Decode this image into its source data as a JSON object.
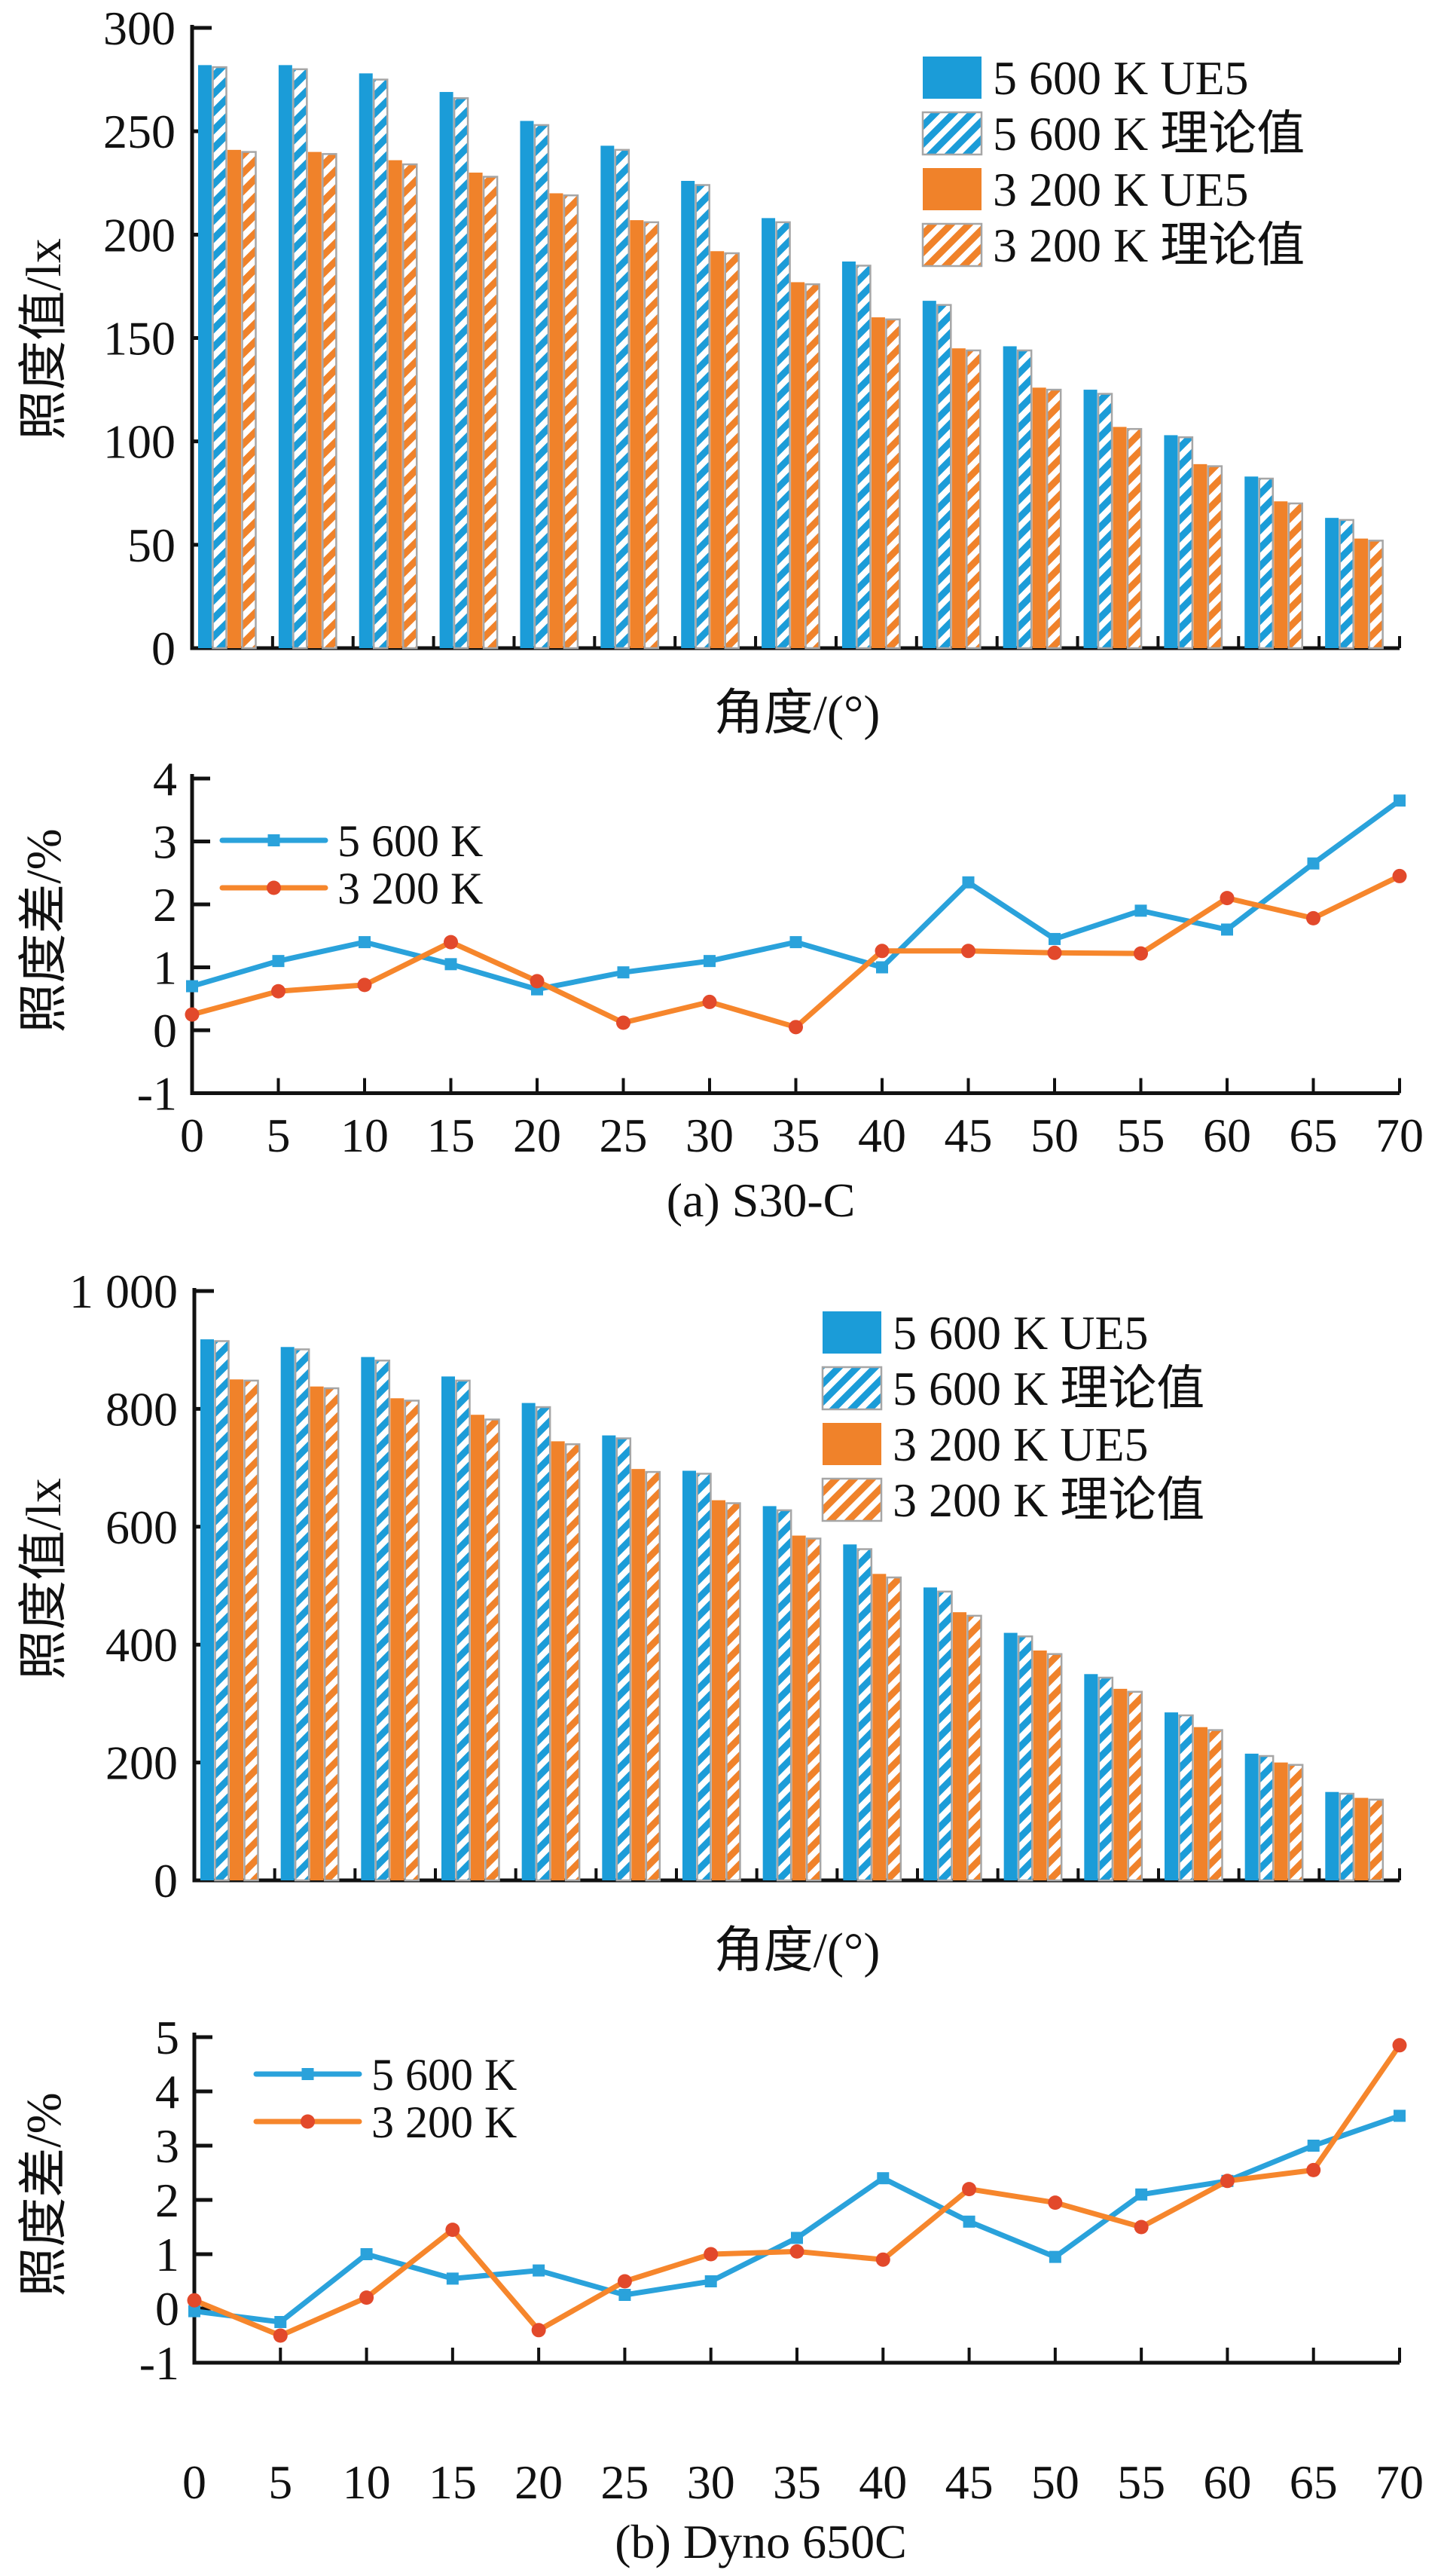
{
  "figure": {
    "description": "Illuminance comparison figure with two bar charts (UE5 vs theoretical illuminance) and two percent-difference line charts",
    "colors": {
      "blue": "#1b9cd8",
      "orange": "#f0822a",
      "line_blue": "#2aa2db",
      "line_orange": "#f6862c",
      "marker_orange": "#e2492b",
      "hatch_border": "#a6a6a6",
      "axis": "#111111"
    }
  },
  "chart_data": [
    {
      "id": "bars-s30c",
      "type": "bar",
      "title": "",
      "xlabel": "角度/(°)",
      "ylabel": "照度值/lx",
      "ylim": [
        0,
        300
      ],
      "ytick_labels": [
        "0",
        "50",
        "100",
        "150",
        "200",
        "250",
        "300"
      ],
      "ytick_values": [
        0,
        50,
        100,
        150,
        200,
        250,
        300
      ],
      "categories": [
        "0",
        "5",
        "10",
        "15",
        "20",
        "25",
        "30",
        "35",
        "40",
        "45",
        "50",
        "55",
        "60",
        "65",
        "70"
      ],
      "grid": false,
      "legend_position": "top-right",
      "series": [
        {
          "name": "5 600 K UE5",
          "color": "#1b9cd8",
          "pattern": "solid",
          "values": [
            282,
            282,
            278,
            269,
            255,
            243,
            226,
            208,
            187,
            168,
            146,
            125,
            103,
            83,
            63
          ]
        },
        {
          "name": "5 600 K 理论值",
          "color": "#1b9cd8",
          "pattern": "hatch",
          "values": [
            281,
            280,
            275,
            266,
            253,
            241,
            224,
            206,
            185,
            166,
            144,
            123,
            102,
            82,
            62
          ]
        },
        {
          "name": "3 200 K UE5",
          "color": "#f0822a",
          "pattern": "solid",
          "values": [
            241,
            240,
            236,
            230,
            220,
            207,
            192,
            177,
            160,
            145,
            126,
            107,
            89,
            71,
            53
          ]
        },
        {
          "name": "3 200 K 理论值",
          "color": "#f0822a",
          "pattern": "hatch",
          "values": [
            240,
            239,
            234,
            228,
            219,
            206,
            191,
            176,
            159,
            144,
            125,
            106,
            88,
            70,
            52
          ]
        }
      ]
    },
    {
      "id": "line-s30c",
      "type": "line",
      "caption": "(a) S30-C",
      "xlabel": "",
      "ylabel": "照度差/%",
      "ylim": [
        -1,
        4
      ],
      "ytick_labels": [
        "-1",
        "0",
        "1",
        "2",
        "3",
        "4"
      ],
      "ytick_values": [
        -1,
        0,
        1,
        2,
        3,
        4
      ],
      "categories": [
        "0",
        "5",
        "10",
        "15",
        "20",
        "25",
        "30",
        "35",
        "40",
        "45",
        "50",
        "55",
        "60",
        "65",
        "70"
      ],
      "grid": false,
      "legend_position": "top-left",
      "series": [
        {
          "name": "5 600 K",
          "color": "#2aa2db",
          "marker": "square",
          "marker_color": "#2aa2db",
          "values": [
            0.7,
            1.1,
            1.4,
            1.05,
            0.65,
            0.92,
            1.1,
            1.4,
            1.0,
            2.35,
            1.45,
            1.9,
            1.6,
            2.65,
            3.65
          ]
        },
        {
          "name": "3 200 K",
          "color": "#f6862c",
          "marker": "circle",
          "marker_color": "#e2492b",
          "values": [
            0.25,
            0.62,
            0.72,
            1.4,
            0.78,
            0.12,
            0.45,
            0.05,
            1.26,
            1.26,
            1.23,
            1.22,
            2.1,
            1.78,
            2.45
          ]
        }
      ]
    },
    {
      "id": "bars-dyno650c",
      "type": "bar",
      "title": "",
      "xlabel": "角度/(°)",
      "ylabel": "照度值/lx",
      "ylim": [
        0,
        1000
      ],
      "ytick_labels": [
        "0",
        "200",
        "400",
        "600",
        "800",
        "1 000"
      ],
      "ytick_values": [
        0,
        200,
        400,
        600,
        800,
        1000
      ],
      "categories": [
        "0",
        "5",
        "10",
        "15",
        "20",
        "25",
        "30",
        "35",
        "40",
        "45",
        "50",
        "55",
        "60",
        "65",
        "70"
      ],
      "grid": false,
      "legend_position": "top-right",
      "series": [
        {
          "name": "5 600 K UE5",
          "color": "#1b9cd8",
          "pattern": "solid",
          "values": [
            918,
            905,
            888,
            855,
            810,
            755,
            695,
            635,
            570,
            497,
            420,
            350,
            285,
            215,
            150
          ]
        },
        {
          "name": "5 600 K 理论值",
          "color": "#1b9cd8",
          "pattern": "hatch",
          "values": [
            915,
            901,
            882,
            848,
            803,
            750,
            690,
            628,
            562,
            490,
            414,
            344,
            280,
            211,
            147
          ]
        },
        {
          "name": "3 200 K UE5",
          "color": "#f0822a",
          "pattern": "solid",
          "values": [
            850,
            838,
            818,
            790,
            745,
            698,
            645,
            585,
            520,
            455,
            390,
            325,
            260,
            200,
            140
          ]
        },
        {
          "name": "3 200 K 理论值",
          "color": "#f0822a",
          "pattern": "hatch",
          "values": [
            848,
            835,
            814,
            782,
            740,
            693,
            640,
            580,
            514,
            449,
            384,
            320,
            255,
            196,
            137
          ]
        }
      ]
    },
    {
      "id": "line-dyno650c",
      "type": "line",
      "caption": "(b) Dyno 650C",
      "xlabel": "",
      "ylabel": "照度差/%",
      "ylim": [
        -1,
        5
      ],
      "ytick_labels": [
        "-1",
        "0",
        "1",
        "2",
        "3",
        "4",
        "5"
      ],
      "ytick_values": [
        -1,
        0,
        1,
        2,
        3,
        4,
        5
      ],
      "categories": [
        "0",
        "5",
        "10",
        "15",
        "20",
        "25",
        "30",
        "35",
        "40",
        "45",
        "50",
        "55",
        "60",
        "65",
        "70"
      ],
      "grid": false,
      "legend_position": "top-left",
      "series": [
        {
          "name": "5 600 K",
          "color": "#2aa2db",
          "marker": "square",
          "marker_color": "#2aa2db",
          "values": [
            -0.05,
            -0.25,
            1.0,
            0.55,
            0.7,
            0.25,
            0.5,
            1.3,
            2.4,
            1.6,
            0.95,
            2.1,
            2.35,
            3.0,
            3.55
          ]
        },
        {
          "name": "3 200 K",
          "color": "#f6862c",
          "marker": "circle",
          "marker_color": "#e2492b",
          "values": [
            0.15,
            -0.5,
            0.2,
            1.45,
            -0.4,
            0.5,
            1.0,
            1.05,
            0.9,
            2.2,
            1.95,
            1.5,
            2.35,
            2.55,
            4.85
          ]
        }
      ]
    }
  ]
}
